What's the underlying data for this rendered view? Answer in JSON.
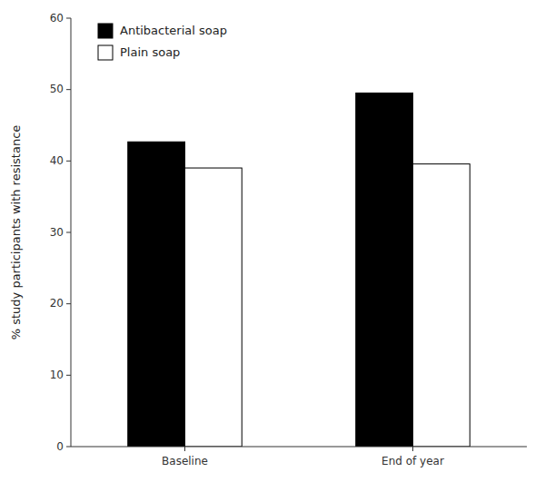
{
  "chart_data": {
    "type": "bar",
    "categories": [
      "Baseline",
      "End of year"
    ],
    "series": [
      {
        "name": "Antibacterial soap",
        "color": "#000000",
        "values": [
          42.68,
          49.52
        ]
      },
      {
        "name": "Plain soap",
        "color": "#ffffff",
        "values": [
          39.02,
          39.58
        ]
      }
    ],
    "ylabel": "% study participants with resistance",
    "ylim": [
      0,
      60
    ],
    "yticks": [
      0,
      10,
      20,
      30,
      40,
      50,
      60
    ],
    "legend": "upper left",
    "grid": false
  }
}
